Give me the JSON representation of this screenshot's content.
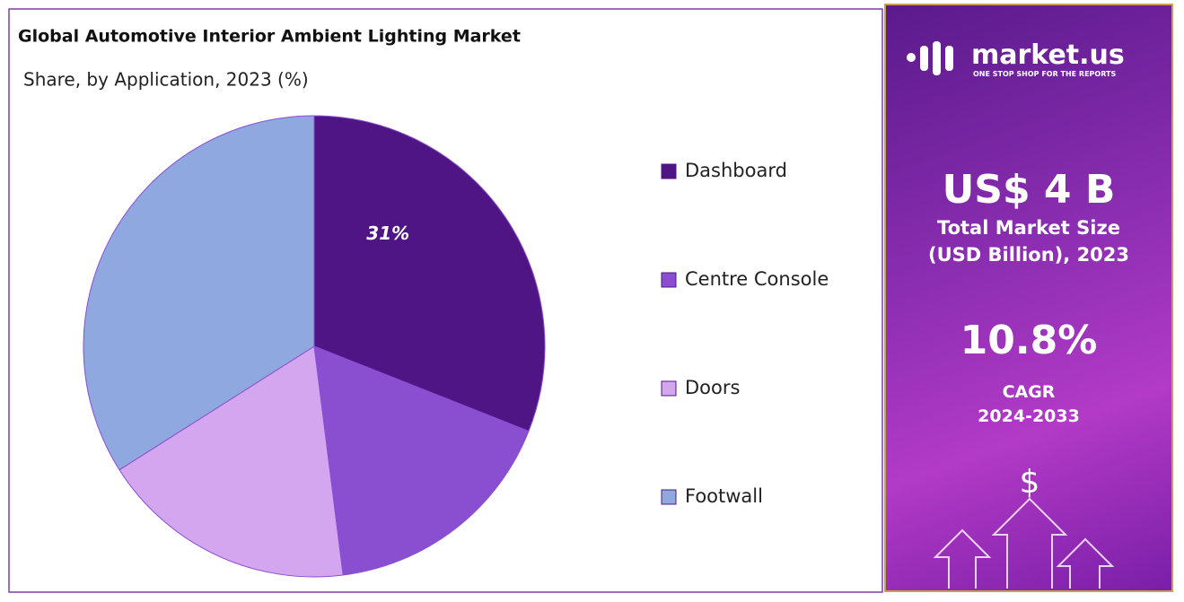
{
  "chart_data": {
    "type": "pie",
    "title": "Global Automotive Interior Ambient Lighting  Market",
    "subtitle": "Share, by Application, 2023 (%)",
    "categories": [
      "Dashboard",
      "Centre Console",
      "Doors",
      "Footwall"
    ],
    "values": [
      31,
      17,
      18,
      34
    ],
    "value_labels": [
      "31%",
      null,
      null,
      null
    ],
    "colors": [
      "#4f1585",
      "#8a4fd1",
      "#d3a6ef",
      "#8fa8e0"
    ],
    "legend": "right"
  },
  "panel": {
    "brand": "market.us",
    "tagline": "ONE STOP SHOP FOR THE REPORTS",
    "market_size": "US$ 4 B",
    "market_size_label_1": "Total Market Size",
    "market_size_label_2": "(USD Billion), 2023",
    "cagr": "10.8%",
    "cagr_label": "CAGR",
    "cagr_period": "2024-2033"
  }
}
